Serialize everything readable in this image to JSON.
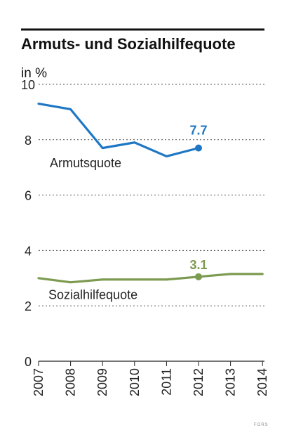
{
  "credit": "FORS",
  "chart_data": {
    "type": "line",
    "title": "Armuts- und Sozialhilfequote",
    "unit_label": "in %",
    "x": [
      "2007",
      "2008",
      "2009",
      "2010",
      "2011",
      "2012",
      "2013",
      "2014"
    ],
    "ylim": [
      0,
      10
    ],
    "yticks": [
      "0",
      "2",
      "4",
      "6",
      "8",
      "10"
    ],
    "grid": true,
    "series": [
      {
        "name": "Armutsquote",
        "color": "#1f77c4",
        "values": [
          9.3,
          9.1,
          7.7,
          7.9,
          7.4,
          7.7,
          null,
          null
        ],
        "highlight_index": 5,
        "highlight_label": "7.7"
      },
      {
        "name": "Sozialhilfequote",
        "color": "#7c9a50",
        "values": [
          3.0,
          2.85,
          2.95,
          2.95,
          2.95,
          3.05,
          3.15,
          3.15
        ],
        "highlight_index": 5,
        "highlight_label": "3.1"
      }
    ]
  }
}
